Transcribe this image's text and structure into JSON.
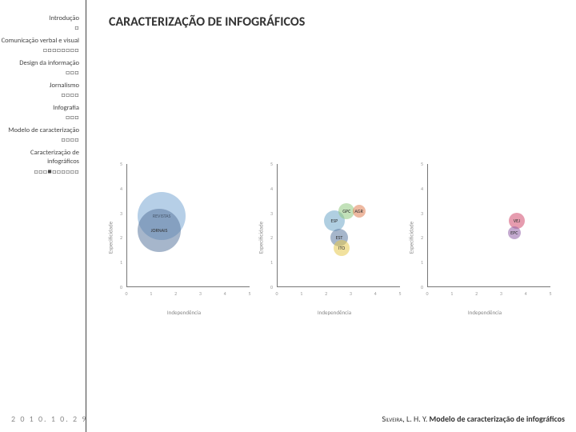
{
  "title": "CARACTERIZAÇÃO DE INFOGRÁFICOS",
  "date": "2 0 1 0.  1 0.  2 9",
  "sidebar": {
    "items": [
      {
        "label": "Introdução",
        "progress": "□"
      },
      {
        "label": "Comunicação verbal e visual",
        "progress": "□□□□□□□□"
      },
      {
        "label": "Design da informação",
        "progress": "□□□"
      },
      {
        "label": "Jornalismo",
        "progress": "□□□□"
      },
      {
        "label": "Infografia",
        "progress": "□□□"
      },
      {
        "label": "Modelo de caracterização",
        "progress": "□□□□"
      },
      {
        "label": "Caracterização de infográficos",
        "progress": "□□□■□□□□□□"
      }
    ]
  },
  "credit_author": "Silveira",
  "credit_rest": ", L. H. Y.",
  "credit_title": "Modelo de caracterização de infográficos",
  "charts": {
    "x_label": "Independência",
    "y_label": "Especificidade",
    "xlim": [
      0,
      5
    ],
    "ylim": [
      0,
      5
    ],
    "x_ticks": [
      0,
      1,
      2,
      3,
      4,
      5
    ],
    "y_ticks": [
      0,
      1,
      2,
      3,
      4,
      5
    ],
    "background": "#ffffff",
    "axis_color": "#777",
    "tick_color": "#999",
    "label_color": "#888",
    "label_fontsize": 7,
    "tick_fontsize": 6,
    "bubble_label_fontsize": 6,
    "bubble_opacity": 0.55,
    "panels": [
      {
        "bubbles": [
          {
            "label": "REVISTAS",
            "x": 1.4,
            "y": 2.9,
            "r": 60,
            "color": "#7aa8d4"
          },
          {
            "label": "JORNAIS",
            "x": 1.3,
            "y": 2.3,
            "r": 54,
            "color": "#5c7aa0"
          }
        ]
      },
      {
        "bubbles": [
          {
            "label": "ESP",
            "x": 2.3,
            "y": 2.7,
            "r": 26,
            "color": "#6fa8c8"
          },
          {
            "label": "GPC",
            "x": 2.8,
            "y": 3.1,
            "r": 20,
            "color": "#8fc97f"
          },
          {
            "label": "AGR",
            "x": 3.3,
            "y": 3.1,
            "r": 16,
            "color": "#e07f54"
          },
          {
            "label": "EST",
            "x": 2.5,
            "y": 2.0,
            "r": 22,
            "color": "#5c7aa0"
          },
          {
            "label": "ITO",
            "x": 2.6,
            "y": 1.6,
            "r": 20,
            "color": "#e6c94f"
          }
        ]
      },
      {
        "bubbles": [
          {
            "label": "VEJ",
            "x": 3.6,
            "y": 2.7,
            "r": 20,
            "color": "#d14b6e"
          },
          {
            "label": "EPC",
            "x": 3.5,
            "y": 2.2,
            "r": 16,
            "color": "#9262a8"
          }
        ]
      }
    ]
  }
}
